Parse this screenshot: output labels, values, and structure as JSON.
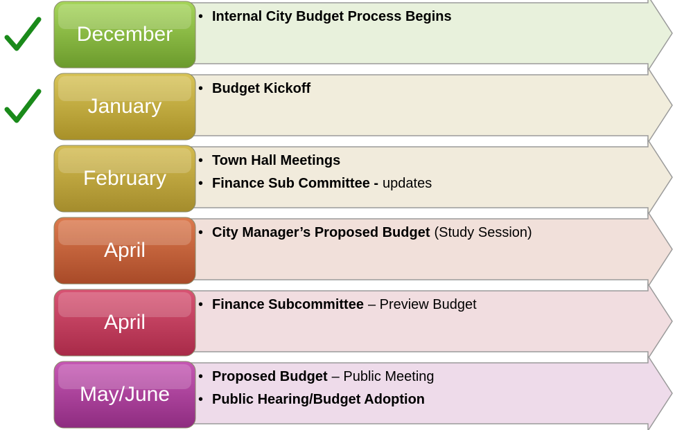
{
  "rows": [
    {
      "month": "December",
      "bullets": [
        {
          "bold": "Internal City Budget Process Begins"
        }
      ]
    },
    {
      "month": "January",
      "bullets": [
        {
          "bold": "Budget Kickoff"
        }
      ]
    },
    {
      "month": "February",
      "bullets": [
        {
          "bold": "Town Hall Meetings"
        },
        {
          "bold": "Finance Sub Committee -",
          "rest": "updates"
        }
      ]
    },
    {
      "month": "April",
      "bullets": [
        {
          "bold": "City Manager’s Proposed Budget",
          "rest": "(Study Session)"
        }
      ]
    },
    {
      "month": "April",
      "bullets": [
        {
          "bold": "Finance Subcommittee",
          "rest": "– Preview Budget"
        }
      ]
    },
    {
      "month": "May/June",
      "bullets": [
        {
          "bold": "Proposed Budget",
          "rest": "– Public Meeting"
        },
        {
          "bold": "Public Hearing/Budget Adoption"
        }
      ]
    }
  ]
}
